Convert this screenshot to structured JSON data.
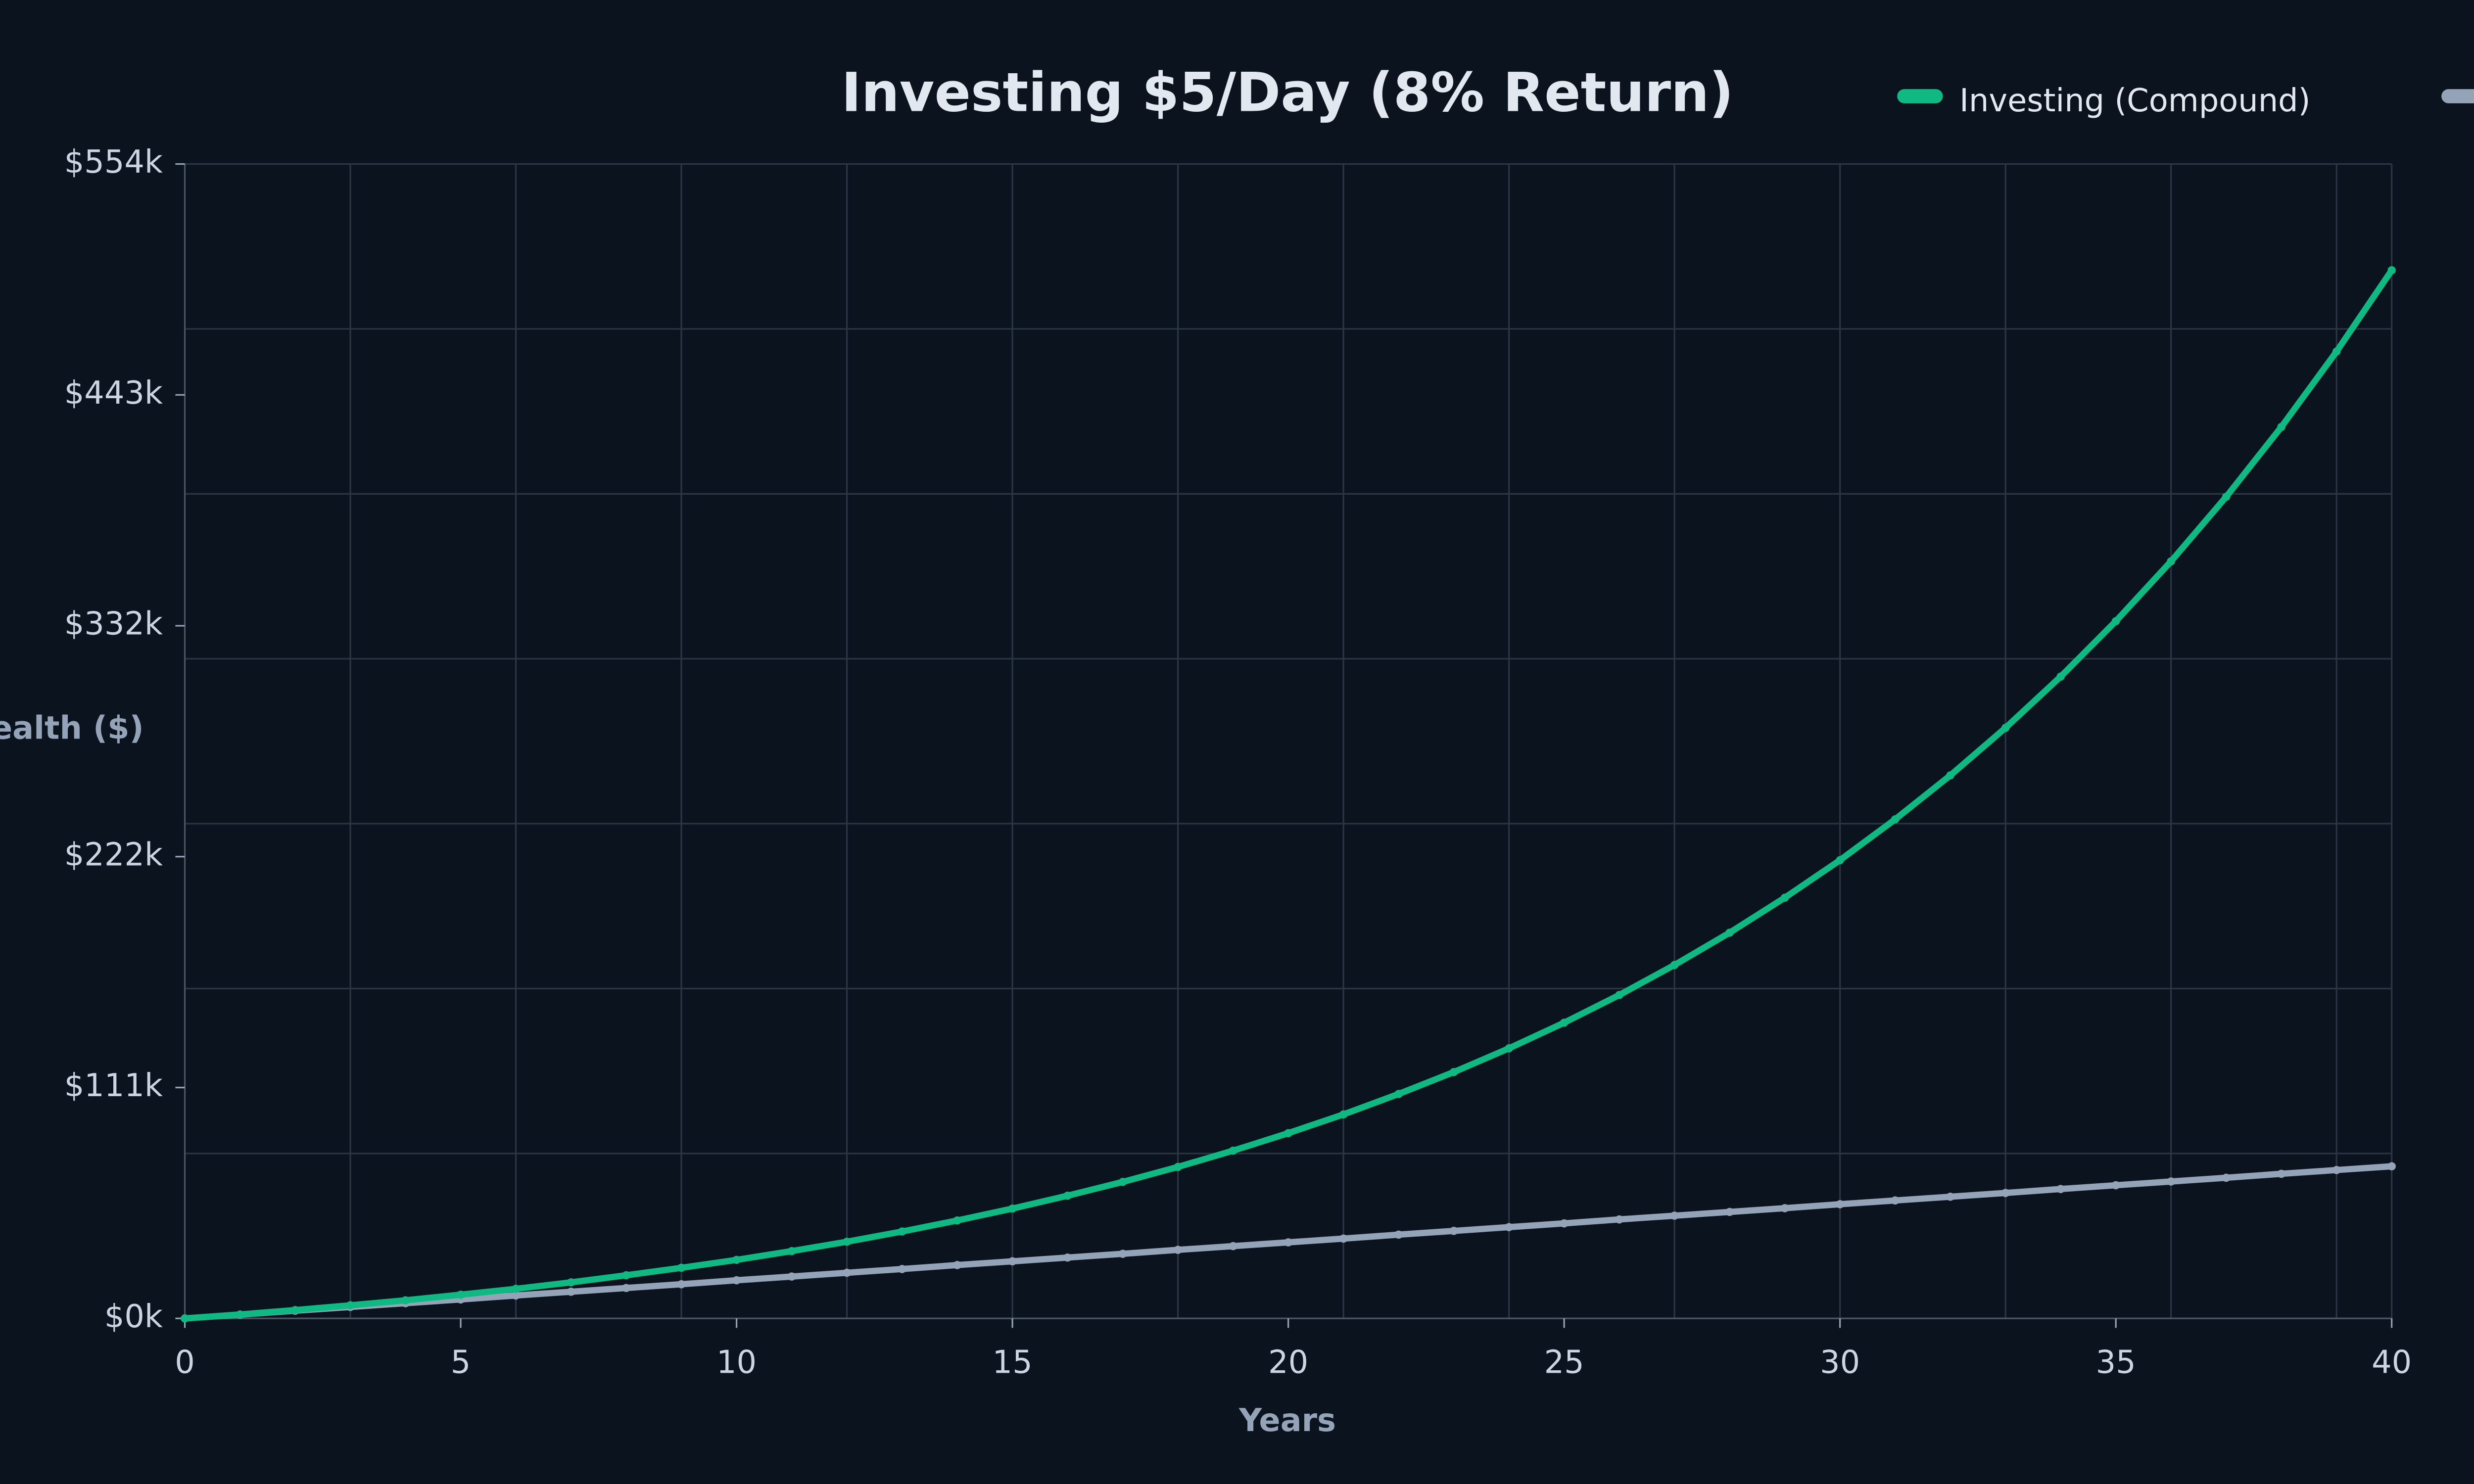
{
  "chart_data": {
    "type": "line",
    "title": "Investing $5/Day (8% Return)",
    "x_label": "Years",
    "y_label": "Wealth ($)",
    "x": [
      0,
      1,
      2,
      3,
      4,
      5,
      6,
      7,
      8,
      9,
      10,
      11,
      12,
      13,
      14,
      15,
      16,
      17,
      18,
      19,
      20,
      21,
      22,
      23,
      24,
      25,
      26,
      27,
      28,
      29,
      30,
      31,
      32,
      33,
      34,
      35,
      36,
      37,
      38,
      39,
      40
    ],
    "series": [
      {
        "name": "Investing (Compound)",
        "color": "#10b981",
        "values": [
          0,
          1.9,
          4.0,
          6.3,
          8.7,
          11.4,
          14.2,
          17.3,
          20.7,
          24.3,
          28.1,
          32.3,
          36.8,
          41.7,
          47.0,
          52.7,
          58.9,
          65.5,
          72.7,
          80.5,
          88.9,
          97.9,
          107.7,
          118.2,
          129.6,
          141.9,
          155.2,
          169.6,
          185.1,
          201.9,
          219.9,
          239.5,
          260.6,
          283.4,
          308.0,
          334.6,
          363.3,
          394.3,
          427.8,
          464.0,
          503.0
        ]
      },
      {
        "color": "#94a3b8",
        "values": [
          0,
          1.8,
          3.7,
          5.5,
          7.3,
          9.1,
          11.0,
          12.8,
          14.6,
          16.4,
          18.3,
          20.1,
          21.9,
          23.7,
          25.6,
          27.4,
          29.2,
          31.0,
          32.9,
          34.7,
          36.5,
          38.3,
          40.2,
          42.0,
          43.8,
          45.6,
          47.5,
          49.3,
          51.1,
          52.9,
          54.8,
          56.6,
          58.4,
          60.2,
          62.1,
          63.9,
          65.7,
          67.5,
          69.4,
          71.2,
          73.0
        ]
      }
    ],
    "xlim": [
      0,
      40
    ],
    "xticks": [
      0,
      5,
      10,
      15,
      20,
      25,
      30,
      35,
      40
    ],
    "xgrid": [
      0,
      3,
      6,
      9,
      12,
      15,
      18,
      21,
      24,
      27,
      30,
      33,
      36,
      39,
      40
    ],
    "ylim": [
      0,
      554
    ],
    "yticks": [
      {
        "value": 0,
        "label": "$0k"
      },
      {
        "value": 110.8,
        "label": "$111k"
      },
      {
        "value": 221.6,
        "label": "$222k"
      },
      {
        "value": 332.4,
        "label": "$332k"
      },
      {
        "value": 443.2,
        "label": "$443k"
      },
      {
        "value": 554,
        "label": "$554k"
      }
    ],
    "ygrid": [
      0,
      79.14,
      158.29,
      237.43,
      316.57,
      395.71,
      474.86,
      554
    ],
    "grid": true,
    "legend": "top-right"
  }
}
